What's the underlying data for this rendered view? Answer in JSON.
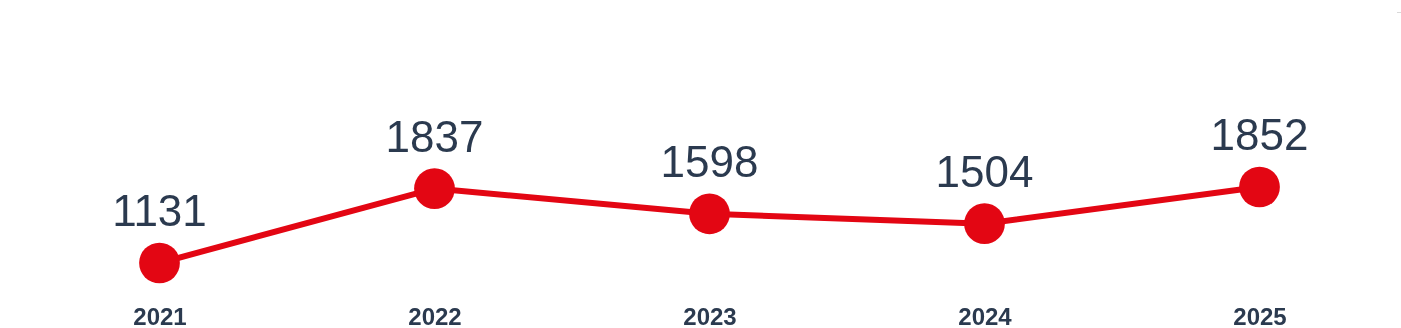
{
  "chart_data": {
    "type": "line",
    "categories": [
      "2021",
      "2022",
      "2023",
      "2024",
      "2025"
    ],
    "values": [
      1131,
      1837,
      1598,
      1504,
      1852
    ],
    "color": "#e30613",
    "marker": "circle",
    "data_labels": true,
    "tick_labels": "x"
  }
}
